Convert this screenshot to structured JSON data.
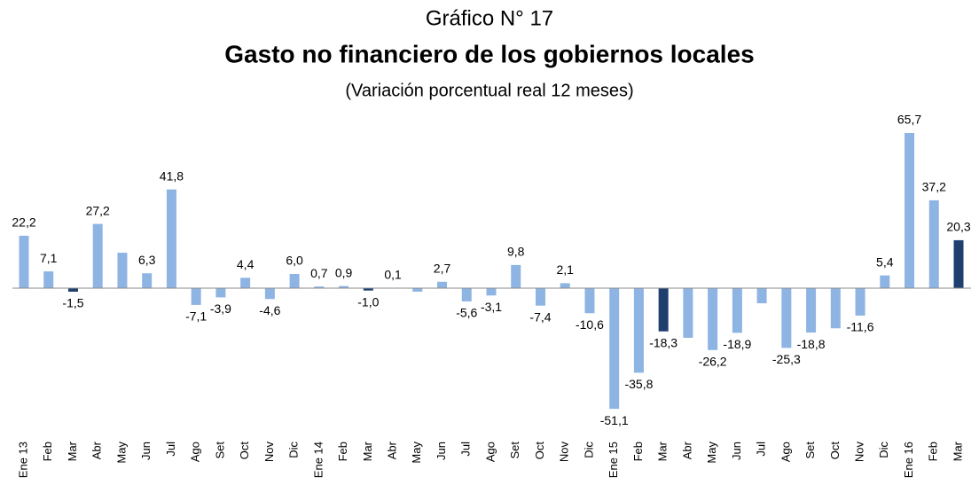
{
  "chart_data": {
    "type": "bar",
    "title": "Gráfico N° 17",
    "subtitle": "Gasto no financiero de los gobiernos locales",
    "note": "(Variación porcentual real 12 meses)",
    "categories": [
      "Ene 13",
      "Feb",
      "Mar",
      "Abr",
      "May",
      "Jun",
      "Jul",
      "Ago",
      "Set",
      "Oct",
      "Nov",
      "Dic",
      "Ene 14",
      "Feb",
      "Mar",
      "Abr",
      "May",
      "Jun",
      "Jul",
      "Ago",
      "Set",
      "Oct",
      "Nov",
      "Dic",
      "Ene 15",
      "Feb",
      "Mar",
      "Abr",
      "May",
      "Jun",
      "Jul",
      "Ago",
      "Set",
      "Oct",
      "Nov",
      "Dic",
      "Ene 16",
      "Feb",
      "Mar"
    ],
    "values": [
      22.2,
      7.1,
      -1.5,
      27.2,
      15,
      6.3,
      41.8,
      -7.1,
      -3.9,
      4.4,
      -4.6,
      6.0,
      0.7,
      0.9,
      -1.0,
      0.1,
      -1.5,
      2.7,
      -5.6,
      -3.1,
      9.8,
      -7.4,
      2.1,
      -10.6,
      -51.1,
      -35.8,
      -18.3,
      -21,
      -26.2,
      -18.9,
      -6.4,
      -25.3,
      -18.8,
      -17,
      -11.6,
      5.4,
      65.7,
      37.2,
      20.3
    ],
    "value_labels": [
      "22,2",
      "7,1",
      "-1,5",
      "27,2",
      null,
      "6,3",
      "41,8",
      "-7,1",
      "-3,9",
      "4,4",
      "-4,6",
      "6,0",
      "0,7",
      "0,9",
      "-1,0",
      "0,1",
      null,
      "2,7",
      "-5,6",
      "-3,1",
      "9,8",
      "-7,4",
      "2,1",
      "-10,6",
      "-51,1",
      "-35,8",
      "-18,3",
      null,
      "-26,2",
      "-18,9",
      null,
      "-25,3",
      "-18,8",
      null,
      "-11,6",
      "5,4",
      "65,7",
      "37,2",
      "20,3"
    ],
    "colors": [
      "#8eb4e3",
      "#8eb4e3",
      "#1f3f6e",
      "#8eb4e3",
      "#8eb4e3",
      "#8eb4e3",
      "#8eb4e3",
      "#8eb4e3",
      "#8eb4e3",
      "#8eb4e3",
      "#8eb4e3",
      "#8eb4e3",
      "#8eb4e3",
      "#8eb4e3",
      "#1f3f6e",
      "#8eb4e3",
      "#8eb4e3",
      "#8eb4e3",
      "#8eb4e3",
      "#8eb4e3",
      "#8eb4e3",
      "#8eb4e3",
      "#8eb4e3",
      "#8eb4e3",
      "#8eb4e3",
      "#8eb4e3",
      "#1f3f6e",
      "#8eb4e3",
      "#8eb4e3",
      "#8eb4e3",
      "#8eb4e3",
      "#8eb4e3",
      "#8eb4e3",
      "#8eb4e3",
      "#8eb4e3",
      "#8eb4e3",
      "#8eb4e3",
      "#8eb4e3",
      "#1f3f6e"
    ]
  }
}
